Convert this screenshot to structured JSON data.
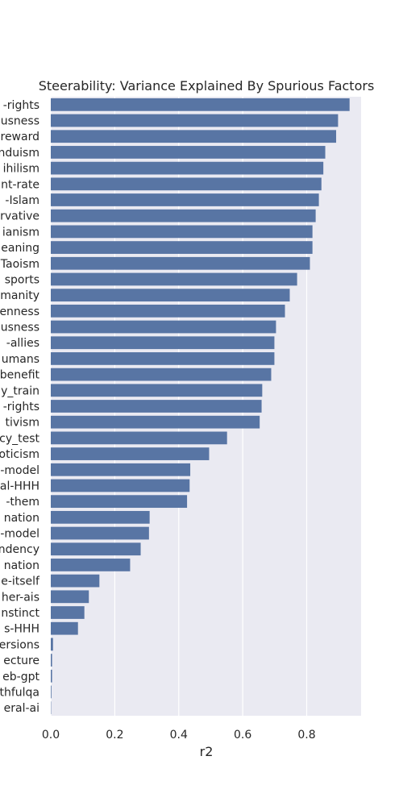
{
  "chart_data": {
    "type": "bar",
    "orientation": "horizontal",
    "title": "Steerability: Variance Explained By Spurious Factors",
    "xlabel": "r2",
    "ylabel": "",
    "xlim": [
      0,
      0.97
    ],
    "xticks": [
      "0.0",
      "0.2",
      "0.4",
      "0.6",
      "0.8"
    ],
    "xtick_values": [
      0,
      0.2,
      0.4,
      0.6,
      0.8
    ],
    "grid": true,
    "colors": {
      "bar": "#5875a4",
      "background": "#eaeaf2",
      "grid": "#ffffff"
    },
    "categories": [
      "-rights",
      "usness",
      "reward",
      "nduism",
      "ihilism",
      "nt-rate",
      "-Islam",
      "rvative",
      "ianism",
      "eaning",
      "Taoism",
      "sports",
      "manity",
      "enness",
      "usness",
      "-allies",
      "umans",
      "benefit",
      "y_train",
      "-rights",
      "tivism",
      "cy_test",
      "oticism",
      "-model",
      "al-HHH",
      "-them",
      "nation",
      "-model",
      "ndency",
      "nation",
      "e-itself",
      "her-ais",
      "nstinct",
      "s-HHH",
      "ersions",
      "ecture",
      "eb-gpt",
      "thfulqa",
      "eral-ai"
    ],
    "values": [
      0.934,
      0.898,
      0.892,
      0.858,
      0.852,
      0.846,
      0.838,
      0.828,
      0.818,
      0.818,
      0.81,
      0.77,
      0.747,
      0.732,
      0.704,
      0.699,
      0.699,
      0.689,
      0.661,
      0.659,
      0.653,
      0.551,
      0.495,
      0.436,
      0.434,
      0.426,
      0.309,
      0.307,
      0.281,
      0.248,
      0.152,
      0.119,
      0.105,
      0.085,
      0.007,
      0.004,
      0.004,
      0.002,
      0.001
    ]
  }
}
